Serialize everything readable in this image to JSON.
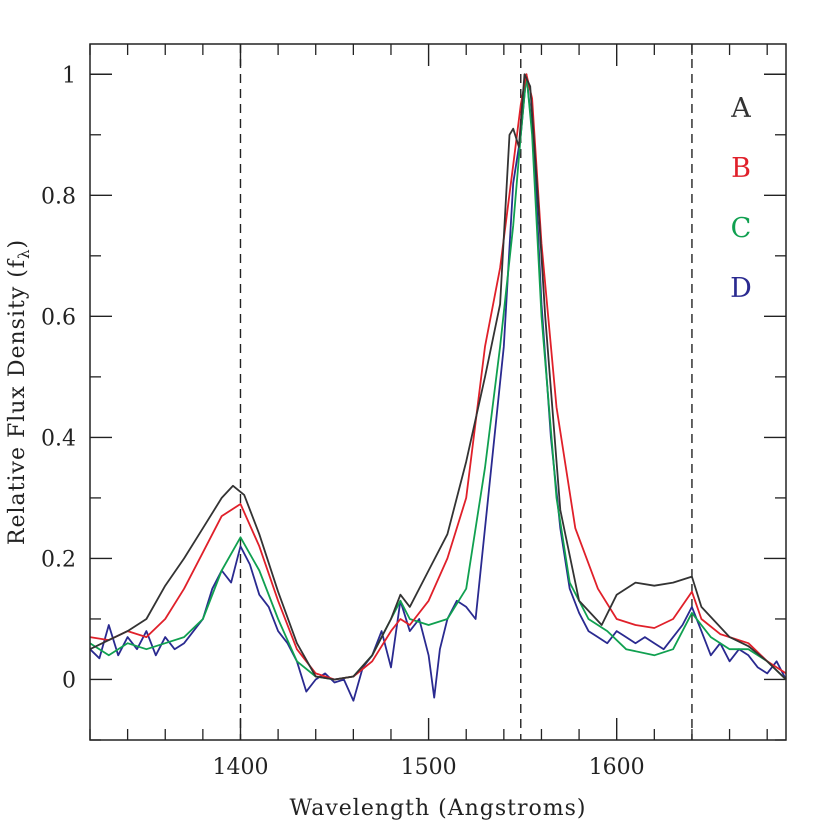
{
  "chart_data": {
    "type": "line",
    "xlabel": "Wavelength (Angstroms)",
    "ylabel": "Relative Flux Density (f",
    "ylabel_sub": "λ",
    "ylabel_close": ")",
    "xlim": [
      1320,
      1690
    ],
    "ylim": [
      -0.1,
      1.05
    ],
    "x_ticks": [
      1400,
      1500,
      1600
    ],
    "x_tick_labels": [
      "1400",
      "1500",
      "1600"
    ],
    "y_ticks": [
      0,
      0.2,
      0.4,
      0.6,
      0.8,
      1
    ],
    "y_tick_labels": [
      "0",
      "0.2",
      "0.4",
      "0.6",
      "0.8",
      "1"
    ],
    "x_minor_step": 20,
    "y_minor_step": 0.1,
    "vertical_dashed_lines": [
      1400,
      1549,
      1640
    ],
    "grid": false,
    "legend_placement": "top-right",
    "series": [
      {
        "name": "A",
        "color": "#333333",
        "points": [
          [
            1320,
            0.05
          ],
          [
            1330,
            0.065
          ],
          [
            1340,
            0.08
          ],
          [
            1350,
            0.1
          ],
          [
            1360,
            0.155
          ],
          [
            1370,
            0.2
          ],
          [
            1380,
            0.25
          ],
          [
            1390,
            0.3
          ],
          [
            1396,
            0.32
          ],
          [
            1402,
            0.305
          ],
          [
            1410,
            0.24
          ],
          [
            1420,
            0.145
          ],
          [
            1430,
            0.06
          ],
          [
            1440,
            0.005
          ],
          [
            1450,
            0.0
          ],
          [
            1460,
            0.005
          ],
          [
            1470,
            0.04
          ],
          [
            1480,
            0.1
          ],
          [
            1485,
            0.14
          ],
          [
            1490,
            0.12
          ],
          [
            1500,
            0.18
          ],
          [
            1510,
            0.24
          ],
          [
            1520,
            0.36
          ],
          [
            1530,
            0.5
          ],
          [
            1538,
            0.62
          ],
          [
            1543,
            0.9
          ],
          [
            1545,
            0.91
          ],
          [
            1548,
            0.88
          ],
          [
            1551,
            1.0
          ],
          [
            1554,
            0.98
          ],
          [
            1558,
            0.8
          ],
          [
            1562,
            0.6
          ],
          [
            1570,
            0.28
          ],
          [
            1580,
            0.13
          ],
          [
            1592,
            0.09
          ],
          [
            1600,
            0.14
          ],
          [
            1610,
            0.16
          ],
          [
            1620,
            0.155
          ],
          [
            1630,
            0.16
          ],
          [
            1640,
            0.17
          ],
          [
            1645,
            0.12
          ],
          [
            1660,
            0.07
          ],
          [
            1670,
            0.055
          ],
          [
            1680,
            0.03
          ],
          [
            1690,
            0.0
          ]
        ]
      },
      {
        "name": "B",
        "color": "#e0202a",
        "points": [
          [
            1320,
            0.07
          ],
          [
            1330,
            0.065
          ],
          [
            1340,
            0.08
          ],
          [
            1350,
            0.07
          ],
          [
            1360,
            0.1
          ],
          [
            1370,
            0.15
          ],
          [
            1380,
            0.21
          ],
          [
            1390,
            0.27
          ],
          [
            1400,
            0.29
          ],
          [
            1410,
            0.22
          ],
          [
            1420,
            0.13
          ],
          [
            1430,
            0.05
          ],
          [
            1440,
            0.01
          ],
          [
            1450,
            0.0
          ],
          [
            1460,
            0.005
          ],
          [
            1470,
            0.03
          ],
          [
            1480,
            0.08
          ],
          [
            1485,
            0.1
          ],
          [
            1490,
            0.09
          ],
          [
            1500,
            0.13
          ],
          [
            1510,
            0.2
          ],
          [
            1520,
            0.3
          ],
          [
            1530,
            0.55
          ],
          [
            1538,
            0.68
          ],
          [
            1545,
            0.85
          ],
          [
            1549,
            0.95
          ],
          [
            1552,
            1.0
          ],
          [
            1555,
            0.96
          ],
          [
            1560,
            0.72
          ],
          [
            1568,
            0.45
          ],
          [
            1578,
            0.25
          ],
          [
            1590,
            0.15
          ],
          [
            1600,
            0.1
          ],
          [
            1610,
            0.09
          ],
          [
            1620,
            0.085
          ],
          [
            1630,
            0.1
          ],
          [
            1640,
            0.145
          ],
          [
            1645,
            0.1
          ],
          [
            1655,
            0.075
          ],
          [
            1670,
            0.06
          ],
          [
            1680,
            0.03
          ],
          [
            1690,
            0.01
          ]
        ]
      },
      {
        "name": "C",
        "color": "#10a050",
        "points": [
          [
            1320,
            0.06
          ],
          [
            1330,
            0.04
          ],
          [
            1340,
            0.06
          ],
          [
            1350,
            0.05
          ],
          [
            1360,
            0.06
          ],
          [
            1370,
            0.07
          ],
          [
            1380,
            0.1
          ],
          [
            1390,
            0.18
          ],
          [
            1400,
            0.235
          ],
          [
            1410,
            0.18
          ],
          [
            1420,
            0.1
          ],
          [
            1430,
            0.03
          ],
          [
            1440,
            0.005
          ],
          [
            1450,
            0.0
          ],
          [
            1460,
            0.005
          ],
          [
            1470,
            0.04
          ],
          [
            1480,
            0.1
          ],
          [
            1485,
            0.13
          ],
          [
            1490,
            0.1
          ],
          [
            1500,
            0.09
          ],
          [
            1510,
            0.1
          ],
          [
            1520,
            0.15
          ],
          [
            1530,
            0.35
          ],
          [
            1538,
            0.55
          ],
          [
            1545,
            0.75
          ],
          [
            1549,
            0.9
          ],
          [
            1552,
            1.0
          ],
          [
            1555,
            0.9
          ],
          [
            1560,
            0.6
          ],
          [
            1568,
            0.3
          ],
          [
            1575,
            0.16
          ],
          [
            1585,
            0.1
          ],
          [
            1595,
            0.08
          ],
          [
            1605,
            0.05
          ],
          [
            1620,
            0.04
          ],
          [
            1630,
            0.05
          ],
          [
            1640,
            0.11
          ],
          [
            1650,
            0.07
          ],
          [
            1660,
            0.05
          ],
          [
            1670,
            0.05
          ],
          [
            1680,
            0.03
          ],
          [
            1690,
            0.0
          ]
        ]
      },
      {
        "name": "D",
        "color": "#2a2a90",
        "points": [
          [
            1320,
            0.05
          ],
          [
            1325,
            0.035
          ],
          [
            1330,
            0.09
          ],
          [
            1335,
            0.04
          ],
          [
            1340,
            0.07
          ],
          [
            1345,
            0.05
          ],
          [
            1350,
            0.08
          ],
          [
            1355,
            0.04
          ],
          [
            1360,
            0.07
          ],
          [
            1365,
            0.05
          ],
          [
            1370,
            0.06
          ],
          [
            1375,
            0.08
          ],
          [
            1380,
            0.1
          ],
          [
            1385,
            0.15
          ],
          [
            1390,
            0.18
          ],
          [
            1395,
            0.16
          ],
          [
            1400,
            0.22
          ],
          [
            1405,
            0.19
          ],
          [
            1410,
            0.14
          ],
          [
            1415,
            0.12
          ],
          [
            1420,
            0.08
          ],
          [
            1425,
            0.06
          ],
          [
            1430,
            0.03
          ],
          [
            1435,
            -0.02
          ],
          [
            1440,
            0.0
          ],
          [
            1445,
            0.01
          ],
          [
            1450,
            -0.005
          ],
          [
            1455,
            0.0
          ],
          [
            1460,
            -0.035
          ],
          [
            1465,
            0.02
          ],
          [
            1470,
            0.04
          ],
          [
            1475,
            0.08
          ],
          [
            1480,
            0.02
          ],
          [
            1485,
            0.13
          ],
          [
            1490,
            0.08
          ],
          [
            1495,
            0.1
          ],
          [
            1500,
            0.04
          ],
          [
            1503,
            -0.03
          ],
          [
            1506,
            0.05
          ],
          [
            1510,
            0.1
          ],
          [
            1515,
            0.13
          ],
          [
            1520,
            0.12
          ],
          [
            1525,
            0.1
          ],
          [
            1530,
            0.25
          ],
          [
            1535,
            0.4
          ],
          [
            1540,
            0.55
          ],
          [
            1545,
            0.82
          ],
          [
            1549,
            0.9
          ],
          [
            1552,
            1.0
          ],
          [
            1556,
            0.88
          ],
          [
            1560,
            0.62
          ],
          [
            1565,
            0.4
          ],
          [
            1570,
            0.25
          ],
          [
            1575,
            0.15
          ],
          [
            1580,
            0.11
          ],
          [
            1585,
            0.08
          ],
          [
            1590,
            0.07
          ],
          [
            1595,
            0.06
          ],
          [
            1600,
            0.08
          ],
          [
            1605,
            0.07
          ],
          [
            1610,
            0.06
          ],
          [
            1615,
            0.07
          ],
          [
            1620,
            0.06
          ],
          [
            1625,
            0.05
          ],
          [
            1630,
            0.07
          ],
          [
            1635,
            0.09
          ],
          [
            1640,
            0.12
          ],
          [
            1645,
            0.08
          ],
          [
            1650,
            0.04
          ],
          [
            1655,
            0.06
          ],
          [
            1660,
            0.03
          ],
          [
            1665,
            0.05
          ],
          [
            1670,
            0.04
          ],
          [
            1675,
            0.02
          ],
          [
            1680,
            0.01
          ],
          [
            1685,
            0.03
          ],
          [
            1690,
            0.0
          ]
        ]
      }
    ]
  }
}
